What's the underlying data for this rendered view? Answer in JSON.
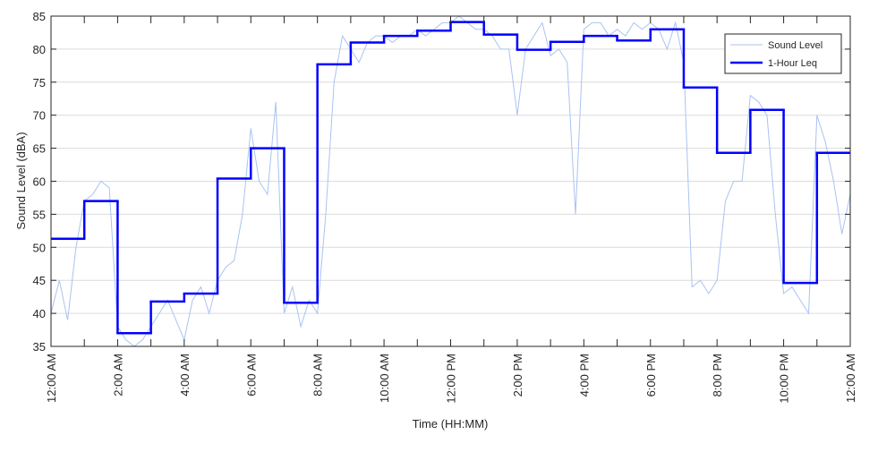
{
  "chart_data": {
    "type": "line",
    "xlabel": "Time (HH:MM)",
    "ylabel": "Sound Level (dBA)",
    "xlim": [
      0,
      24
    ],
    "ylim": [
      35,
      85
    ],
    "xticks": [
      {
        "value": 0,
        "label": "12:00 AM"
      },
      {
        "value": 2,
        "label": "2:00 AM"
      },
      {
        "value": 4,
        "label": "4:00 AM"
      },
      {
        "value": 6,
        "label": "6:00 AM"
      },
      {
        "value": 8,
        "label": "8:00 AM"
      },
      {
        "value": 10,
        "label": "10:00 AM"
      },
      {
        "value": 12,
        "label": "12:00 PM"
      },
      {
        "value": 14,
        "label": "2:00 PM"
      },
      {
        "value": 16,
        "label": "4:00 PM"
      },
      {
        "value": 18,
        "label": "6:00 PM"
      },
      {
        "value": 20,
        "label": "8:00 PM"
      },
      {
        "value": 22,
        "label": "10:00 PM"
      },
      {
        "value": 24,
        "label": "12:00 AM"
      }
    ],
    "xminorticks": [
      1,
      3,
      5,
      7,
      9,
      11,
      13,
      15,
      17,
      19,
      21,
      23
    ],
    "yticks": [
      35,
      40,
      45,
      50,
      55,
      60,
      65,
      70,
      75,
      80,
      85
    ],
    "grid": true,
    "legend": "upper right",
    "series": [
      {
        "name": "Sound Level",
        "color": "#a9c3f2",
        "x": [
          0,
          0.25,
          0.5,
          0.75,
          1,
          1.25,
          1.5,
          1.75,
          2,
          2.25,
          2.5,
          2.75,
          3,
          3.25,
          3.5,
          3.75,
          4,
          4.25,
          4.5,
          4.75,
          5,
          5.25,
          5.5,
          5.75,
          6,
          6.25,
          6.5,
          6.75,
          7,
          7.25,
          7.5,
          7.75,
          8,
          8.25,
          8.5,
          8.75,
          9,
          9.25,
          9.5,
          9.75,
          10,
          10.25,
          10.5,
          10.75,
          11,
          11.25,
          11.5,
          11.75,
          12,
          12.25,
          12.5,
          12.75,
          13,
          13.25,
          13.5,
          13.75,
          14,
          14.25,
          14.5,
          14.75,
          15,
          15.25,
          15.5,
          15.75,
          16,
          16.25,
          16.5,
          16.75,
          17,
          17.25,
          17.5,
          17.75,
          18,
          18.25,
          18.5,
          18.75,
          19,
          19.25,
          19.5,
          19.75,
          20,
          20.25,
          20.5,
          20.75,
          21,
          21.25,
          21.5,
          21.75,
          22,
          22.25,
          22.5,
          22.75,
          23,
          23.25,
          23.5,
          23.75,
          24
        ],
        "values": [
          40,
          45,
          39,
          50,
          57,
          58,
          60,
          59,
          38,
          36,
          35,
          36,
          38,
          40,
          42,
          39,
          36,
          42,
          44,
          40,
          45,
          47,
          48,
          55,
          68,
          60,
          58,
          72,
          40,
          44,
          38,
          42,
          40,
          55,
          75,
          82,
          80,
          78,
          81,
          82,
          82,
          81,
          82,
          82,
          83,
          82,
          83,
          84,
          84,
          85,
          84,
          83,
          83,
          82,
          80,
          80,
          70,
          80,
          82,
          84,
          79,
          80,
          78,
          55,
          83,
          84,
          84,
          82,
          83,
          82,
          84,
          83,
          84,
          83,
          80,
          84,
          78,
          44,
          45,
          43,
          45,
          57,
          60,
          60,
          73,
          72,
          70,
          55,
          43,
          44,
          42,
          40,
          70,
          66,
          60,
          52,
          58
        ]
      },
      {
        "name": "1-Hour Leq",
        "color": "#0000ff",
        "step": true,
        "x": [
          0,
          1,
          2,
          3,
          4,
          5,
          6,
          7,
          8,
          9,
          10,
          11,
          12,
          13,
          14,
          15,
          16,
          17,
          18,
          19,
          20,
          21,
          22,
          23
        ],
        "values": [
          51.3,
          57,
          37,
          41.8,
          43,
          60.4,
          65,
          41.6,
          77.7,
          81,
          82,
          82.8,
          84.1,
          82.2,
          79.9,
          81.1,
          82,
          81.3,
          83,
          74.2,
          64.3,
          70.8,
          44.6,
          64.3
        ]
      }
    ]
  }
}
